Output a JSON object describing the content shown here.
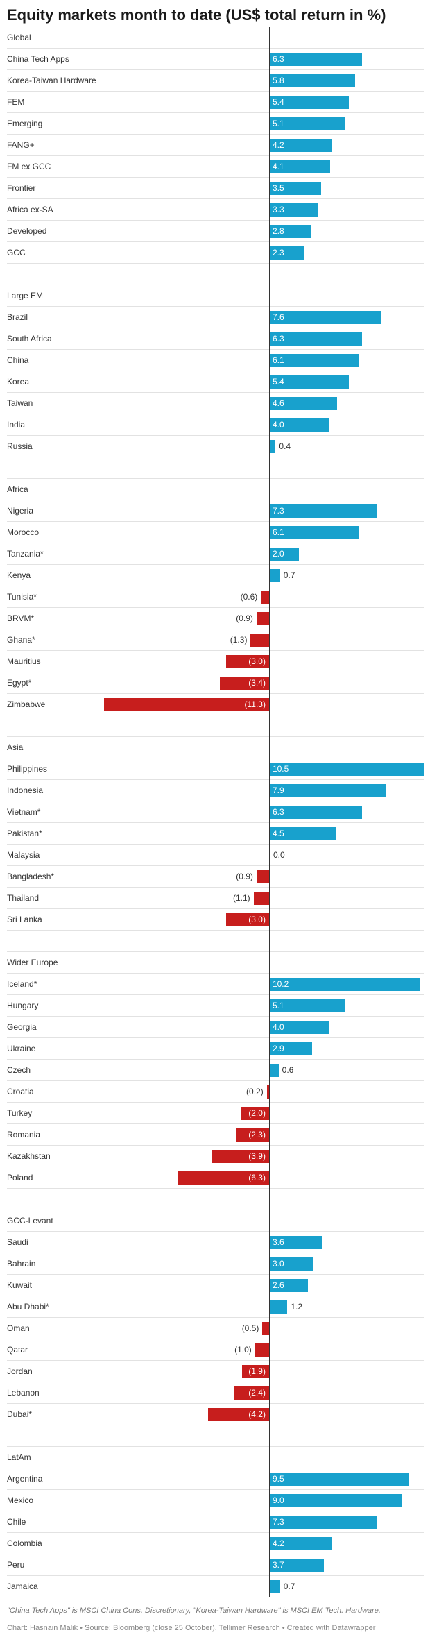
{
  "chart_data": {
    "type": "bar",
    "title": "Equity markets month to date (US$ total return in %)",
    "xlim": [
      -11.3,
      10.5
    ],
    "colors": {
      "positive": "#18a1cd",
      "negative": "#c71e1d",
      "zero_line": "#333333",
      "separator": "#e2e2e2"
    },
    "groups": [
      {
        "name": "Global",
        "rows": [
          {
            "label": "China Tech Apps",
            "value": 6.3
          },
          {
            "label": "Korea-Taiwan Hardware",
            "value": 5.8
          },
          {
            "label": "FEM",
            "value": 5.4
          },
          {
            "label": "Emerging",
            "value": 5.1
          },
          {
            "label": "FANG+",
            "value": 4.2
          },
          {
            "label": "FM ex GCC",
            "value": 4.1
          },
          {
            "label": "Frontier",
            "value": 3.5
          },
          {
            "label": "Africa ex-SA",
            "value": 3.3
          },
          {
            "label": "Developed",
            "value": 2.8
          },
          {
            "label": "GCC",
            "value": 2.3
          }
        ]
      },
      {
        "name": "Large EM",
        "rows": [
          {
            "label": "Brazil",
            "value": 7.6
          },
          {
            "label": "South Africa",
            "value": 6.3
          },
          {
            "label": "China",
            "value": 6.1
          },
          {
            "label": "Korea",
            "value": 5.4
          },
          {
            "label": "Taiwan",
            "value": 4.6
          },
          {
            "label": "India",
            "value": 4.0
          },
          {
            "label": "Russia",
            "value": 0.4
          }
        ]
      },
      {
        "name": "Africa",
        "rows": [
          {
            "label": "Nigeria",
            "value": 7.3
          },
          {
            "label": "Morocco",
            "value": 6.1
          },
          {
            "label": "Tanzania*",
            "value": 2.0
          },
          {
            "label": "Kenya",
            "value": 0.7
          },
          {
            "label": "Tunisia*",
            "value": -0.6
          },
          {
            "label": "BRVM*",
            "value": -0.9
          },
          {
            "label": "Ghana*",
            "value": -1.3
          },
          {
            "label": "Mauritius",
            "value": -3.0
          },
          {
            "label": "Egypt*",
            "value": -3.4
          },
          {
            "label": "Zimbabwe",
            "value": -11.3
          }
        ]
      },
      {
        "name": "Asia",
        "rows": [
          {
            "label": "Philippines",
            "value": 10.5
          },
          {
            "label": "Indonesia",
            "value": 7.9
          },
          {
            "label": "Vietnam*",
            "value": 6.3
          },
          {
            "label": "Pakistan*",
            "value": 4.5
          },
          {
            "label": "Malaysia",
            "value": 0.0
          },
          {
            "label": "Bangladesh*",
            "value": -0.9
          },
          {
            "label": "Thailand",
            "value": -1.1
          },
          {
            "label": "Sri Lanka",
            "value": -3.0
          }
        ]
      },
      {
        "name": "Wider Europe",
        "rows": [
          {
            "label": "Iceland*",
            "value": 10.2
          },
          {
            "label": "Hungary",
            "value": 5.1
          },
          {
            "label": "Georgia",
            "value": 4.0
          },
          {
            "label": "Ukraine",
            "value": 2.9
          },
          {
            "label": "Czech",
            "value": 0.6
          },
          {
            "label": "Croatia",
            "value": -0.2
          },
          {
            "label": "Turkey",
            "value": -2.0
          },
          {
            "label": "Romania",
            "value": -2.3
          },
          {
            "label": "Kazakhstan",
            "value": -3.9
          },
          {
            "label": "Poland",
            "value": -6.3
          }
        ]
      },
      {
        "name": "GCC-Levant",
        "rows": [
          {
            "label": "Saudi",
            "value": 3.6
          },
          {
            "label": "Bahrain",
            "value": 3.0
          },
          {
            "label": "Kuwait",
            "value": 2.6
          },
          {
            "label": "Abu Dhabi*",
            "value": 1.2
          },
          {
            "label": "Oman",
            "value": -0.5
          },
          {
            "label": "Qatar",
            "value": -1.0
          },
          {
            "label": "Jordan",
            "value": -1.9
          },
          {
            "label": "Lebanon",
            "value": -2.4
          },
          {
            "label": "Dubai*",
            "value": -4.2
          }
        ]
      },
      {
        "name": "LatAm",
        "rows": [
          {
            "label": "Argentina",
            "value": 9.5
          },
          {
            "label": "Mexico",
            "value": 9.0
          },
          {
            "label": "Chile",
            "value": 7.3
          },
          {
            "label": "Colombia",
            "value": 4.2
          },
          {
            "label": "Peru",
            "value": 3.7
          },
          {
            "label": "Jamaica",
            "value": 0.7
          }
        ]
      }
    ],
    "notes": "\"China Tech Apps\" is MSCI China Cons. Discretionary, \"Korea-Taiwan Hardware\" is MSCI EM Tech. Hardware.",
    "source": "Chart: Hasnain Malik • Source: Bloomberg (close 25 October), Tellimer Research • Created with Datawrapper"
  }
}
